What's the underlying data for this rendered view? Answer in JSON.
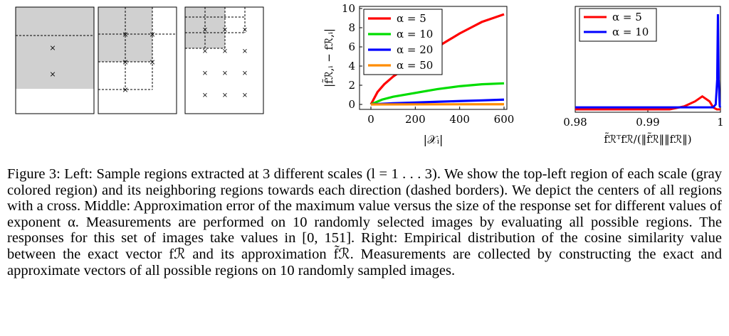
{
  "left_panel": {
    "description_cross_glyph": "×"
  },
  "chart_data": [
    {
      "type": "line",
      "title": "",
      "xlabel": "|𝒳ᵢ|",
      "ylabel": "|f̃ℛ,ᵢ − fℛ,ᵢ|",
      "xlim": [
        0,
        600
      ],
      "ylim": [
        0,
        10
      ],
      "xticks": [
        "0",
        "200",
        "400",
        "600"
      ],
      "yticks": [
        "0",
        "2",
        "4",
        "6",
        "8",
        "10"
      ],
      "legend_position": "top-left",
      "series": [
        {
          "name": "α = 5",
          "color": "#ff0000",
          "x": [
            0,
            30,
            60,
            100,
            150,
            200,
            250,
            300,
            350,
            400,
            450,
            500,
            550,
            600
          ],
          "values": [
            0,
            1.3,
            2.1,
            2.9,
            3.7,
            4.6,
            5.3,
            6.0,
            6.7,
            7.4,
            8.0,
            8.6,
            9.0,
            9.4
          ]
        },
        {
          "name": "α = 10",
          "color": "#00dd00",
          "x": [
            0,
            50,
            100,
            200,
            300,
            400,
            500,
            600
          ],
          "values": [
            0,
            0.5,
            0.8,
            1.2,
            1.6,
            1.9,
            2.1,
            2.2
          ]
        },
        {
          "name": "α = 20",
          "color": "#0000ff",
          "x": [
            0,
            100,
            200,
            300,
            400,
            500,
            600
          ],
          "values": [
            0,
            0.12,
            0.2,
            0.28,
            0.35,
            0.42,
            0.5
          ]
        },
        {
          "name": "α = 50",
          "color": "#ff8c00",
          "x": [
            0,
            600
          ],
          "values": [
            0,
            0.02
          ]
        }
      ]
    },
    {
      "type": "line",
      "title": "",
      "xlabel": "f̃ℛᵀfℛ/(‖f̃ℛ‖‖fℛ‖)",
      "ylabel": "",
      "xlim": [
        0.98,
        1.0
      ],
      "xticks": [
        "0.98",
        "0.99",
        "1"
      ],
      "legend_position": "top-left",
      "series": [
        {
          "name": "α = 5",
          "color": "#ff0000",
          "x": [
            0.98,
            0.993,
            0.995,
            0.9965,
            0.9975,
            0.9985,
            0.999,
            0.9995,
            1.0
          ],
          "values": [
            0.0,
            0.0,
            0.03,
            0.08,
            0.13,
            0.08,
            0.02,
            0.0,
            0.0
          ]
        },
        {
          "name": "α = 10",
          "color": "#0000ff",
          "x": [
            0.98,
            0.999,
            0.99935,
            0.99955,
            0.99965,
            0.99975,
            0.9999,
            1.0
          ],
          "values": [
            0.02,
            0.02,
            0.05,
            0.3,
            0.95,
            0.3,
            0.03,
            0.02
          ]
        }
      ]
    }
  ],
  "caption": {
    "lines": [
      "Figure 3: Left: Sample regions extracted at 3 different scales (l = 1 . . . 3). We show the top-left",
      "region of each scale (gray colored region) and its neighboring regions towards each direction (dashed",
      "borders). We depict the centers of all regions with a cross. Middle: Approximation error of the",
      "maximum value versus the size of the response set for different values of exponent α. Measurements",
      "are performed on 10 randomly selected images by evaluating all possible regions. The responses for",
      "this set of images take values in [0, 151]. Right: Empirical distribution of the cosine similarity value",
      "between the exact vector fℛ and its approximation f̃ℛ. Measurements are collected by constructing",
      "the exact and approximate vectors of all possible regions on 10 randomly sampled images."
    ]
  }
}
